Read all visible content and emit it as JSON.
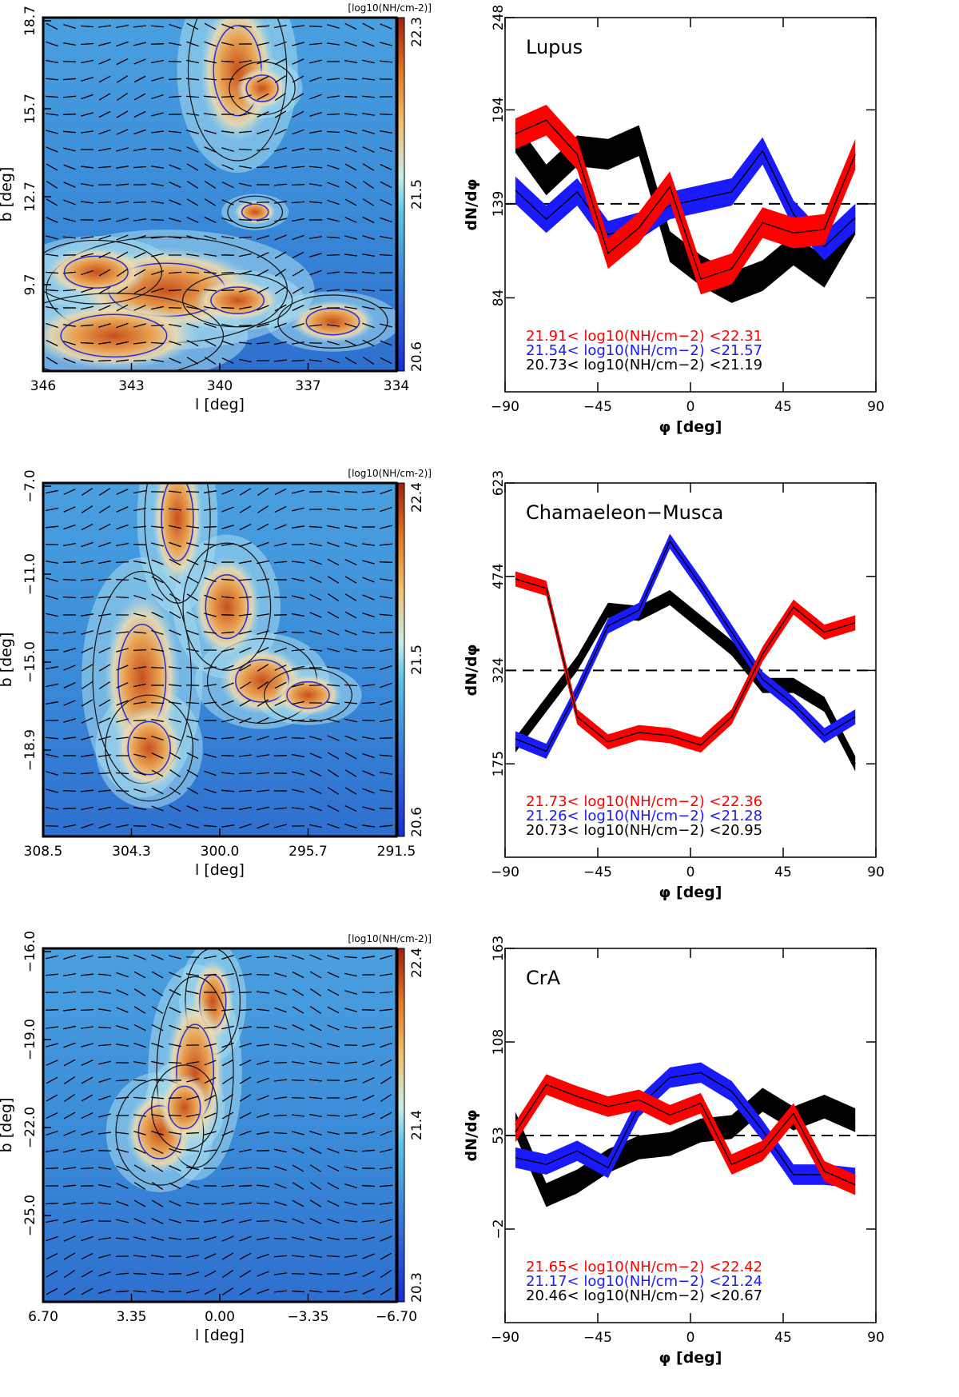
{
  "colorbar_unit": "[log10(NH/cm-2)]",
  "hist_ylabel": "dN/dφ",
  "hist_xlabel": "φ [deg]",
  "map_ylabel": "b [deg]",
  "map_xlabel": "l [deg]",
  "colors": {
    "high": "#ff0000",
    "mid": "#1a1aff",
    "low": "#000000"
  },
  "chart_data": [
    {
      "type": "heatmap",
      "region": "Lupus",
      "x_ticks": [
        "346",
        "343",
        "340",
        "337",
        "334"
      ],
      "y_ticks": [
        "18.7",
        "15.7",
        "12.7",
        "9.7"
      ],
      "colorbar_ticks": [
        "22.3",
        "21.5",
        "20.6"
      ],
      "xlabel": "l [deg]",
      "ylabel": "b [deg]"
    },
    {
      "type": "line",
      "title": "Lupus",
      "xlabel": "φ [deg]",
      "ylabel": "dN/dφ",
      "xlim": [
        -90,
        90
      ],
      "ylim": [
        29,
        248
      ],
      "x_ticks": [
        "−90",
        "−45",
        "0",
        "45",
        "90"
      ],
      "y_ticks": [
        "248",
        "194",
        "139",
        "84"
      ],
      "reference": 139,
      "x": [
        -85,
        -70,
        -55,
        -40,
        -25,
        -10,
        5,
        20,
        35,
        50,
        65,
        80
      ],
      "series": [
        {
          "color": "red",
          "values": [
            180,
            188,
            168,
            110,
            125,
            149,
            95,
            101,
            128,
            122,
            124,
            168
          ],
          "halfwidth": 9
        },
        {
          "color": "blue",
          "values": [
            147,
            130,
            146,
            121,
            126,
            138,
            142,
            146,
            170,
            133,
            114,
            131
          ],
          "halfwidth": 8
        },
        {
          "color": "black",
          "values": [
            178,
            153,
            170,
            168,
            176,
            114,
            100,
            90,
            97,
            112,
            99,
            130
          ],
          "halfwidth": 9
        }
      ],
      "legend": [
        {
          "color": "red",
          "min": "21.91<",
          "mid": "log10(NH/cm−2)",
          "max": "<22.31"
        },
        {
          "color": "blue",
          "min": "21.54<",
          "mid": "log10(NH/cm−2)",
          "max": "<21.57"
        },
        {
          "color": "black",
          "min": "20.73<",
          "mid": "log10(NH/cm−2)",
          "max": "<21.19"
        }
      ]
    },
    {
      "type": "heatmap",
      "region": "Chamaeleon−Musca",
      "x_ticks": [
        "308.5",
        "304.3",
        "300.0",
        "295.7",
        "291.5"
      ],
      "y_ticks": [
        "−7.0",
        "−11.0",
        "−15.0",
        "−18.9"
      ],
      "colorbar_ticks": [
        "22.4",
        "21.5",
        "20.6"
      ],
      "xlabel": "l [deg]",
      "ylabel": "b [deg]"
    },
    {
      "type": "line",
      "title": "Chamaeleon−Musca",
      "xlabel": "φ [deg]",
      "ylabel": "dN/dφ",
      "xlim": [
        -90,
        90
      ],
      "ylim": [
        26,
        623
      ],
      "x_ticks": [
        "−90",
        "−45",
        "0",
        "45",
        "90"
      ],
      "y_ticks": [
        "623",
        "474",
        "324",
        "175"
      ],
      "reference": 324,
      "x": [
        -85,
        -70,
        -55,
        -40,
        -25,
        -10,
        5,
        20,
        35,
        50,
        65,
        80
      ],
      "series": [
        {
          "color": "red",
          "values": [
            470,
            455,
            250,
            210,
            225,
            220,
            205,
            250,
            350,
            425,
            385,
            400
          ],
          "halfwidth": 12
        },
        {
          "color": "blue",
          "values": [
            215,
            195,
            290,
            395,
            420,
            530,
            460,
            385,
            310,
            270,
            220,
            250
          ],
          "halfwidth": 12
        },
        {
          "color": "black",
          "values": [
            205,
            270,
            335,
            420,
            415,
            440,
            400,
            360,
            300,
            300,
            270,
            175
          ],
          "halfwidth": 12
        }
      ],
      "legend": [
        {
          "color": "red",
          "min": "21.73<",
          "mid": "log10(NH/cm−2)",
          "max": "<22.36"
        },
        {
          "color": "blue",
          "min": "21.26<",
          "mid": "log10(NH/cm−2)",
          "max": "<21.28"
        },
        {
          "color": "black",
          "min": "20.73<",
          "mid": "log10(NH/cm−2)",
          "max": "<20.95"
        }
      ]
    },
    {
      "type": "heatmap",
      "region": "CrA",
      "x_ticks": [
        "6.70",
        "3.35",
        "0.00",
        "−3.35",
        "−6.70"
      ],
      "y_ticks": [
        "−16.0",
        "−19.0",
        "−22.0",
        "−25.0"
      ],
      "colorbar_ticks": [
        "22.4",
        "21.4",
        "20.3"
      ],
      "xlabel": "l [deg]",
      "ylabel": "b [deg]"
    },
    {
      "type": "line",
      "title": "CrA",
      "xlabel": "φ [deg]",
      "ylabel": "dN/dφ",
      "xlim": [
        -90,
        90
      ],
      "ylim": [
        -57,
        163
      ],
      "x_ticks": [
        "−90",
        "−45",
        "0",
        "45",
        "90"
      ],
      "y_ticks": [
        "163",
        "108",
        "53",
        "−2"
      ],
      "reference": 53,
      "x": [
        -85,
        -70,
        -55,
        -40,
        -25,
        -10,
        5,
        20,
        35,
        50,
        65,
        80
      ],
      "series": [
        {
          "color": "red",
          "values": [
            55,
            83,
            76,
            70,
            74,
            65,
            72,
            36,
            44,
            66,
            32,
            24
          ],
          "halfwidth": 6
        },
        {
          "color": "blue",
          "values": [
            40,
            36,
            44,
            34,
            70,
            87,
            90,
            79,
            56,
            30,
            30,
            28
          ],
          "halfwidth": 6
        },
        {
          "color": "black",
          "values": [
            60,
            18,
            26,
            38,
            46,
            48,
            56,
            58,
            74,
            63,
            70,
            62
          ],
          "halfwidth": 7
        }
      ],
      "legend": [
        {
          "color": "red",
          "min": "21.65<",
          "mid": "log10(NH/cm−2)",
          "max": "<22.42"
        },
        {
          "color": "blue",
          "min": "21.17<",
          "mid": "log10(NH/cm−2)",
          "max": "<21.24"
        },
        {
          "color": "black",
          "min": "20.46<",
          "mid": "log10(NH/cm−2)",
          "max": "<20.67"
        }
      ]
    }
  ]
}
